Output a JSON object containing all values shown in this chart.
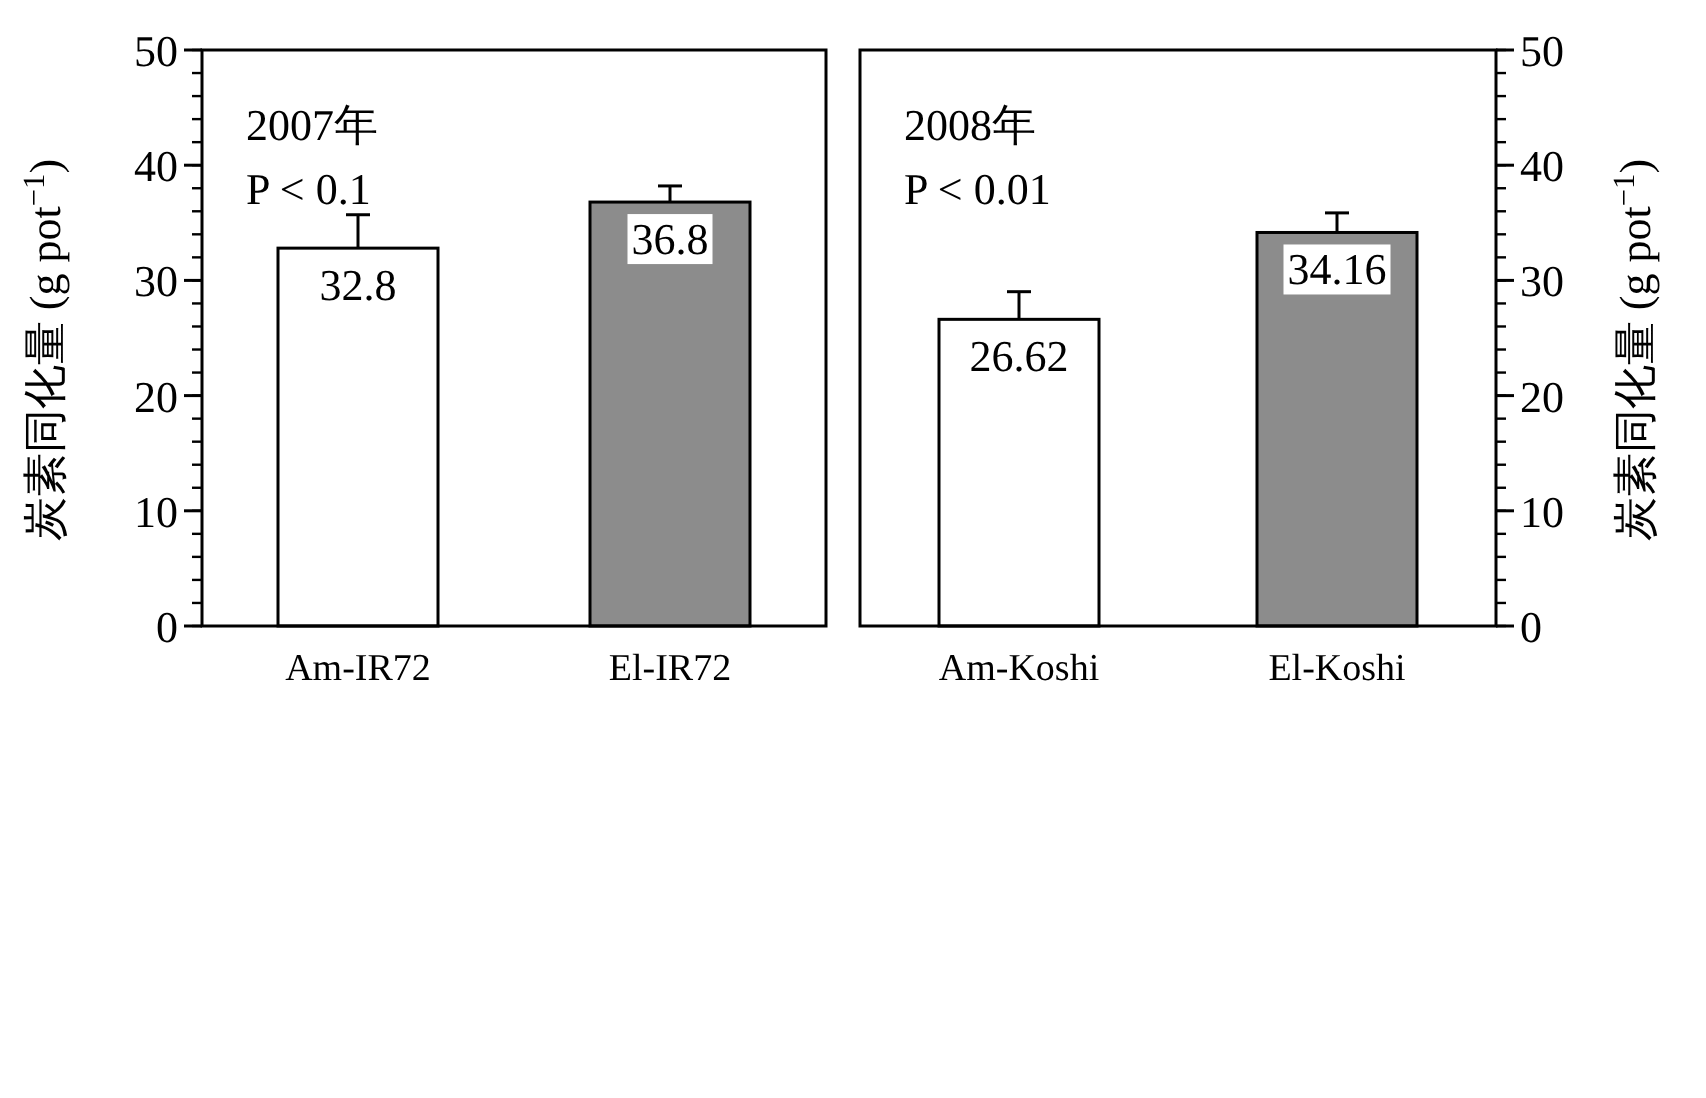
{
  "chart_data": [
    {
      "type": "bar",
      "categories": [
        "Am-IR72",
        "El-IR72"
      ],
      "colors": [
        "#ffffff",
        "#8c8c8c"
      ],
      "series": [
        {
          "values": [
            32.8,
            36.8
          ],
          "errors": [
            2.9,
            1.4
          ]
        }
      ],
      "ylim": [
        0,
        50
      ],
      "yticks": [
        0,
        10,
        20,
        30,
        40,
        50
      ],
      "ylabel": "炭素同化量 (g pot$^{−1}$)",
      "data_labels": true,
      "annotations": [
        "2007年",
        "P < 0.1"
      ]
    },
    {
      "type": "bar",
      "categories": [
        "Am-Koshi",
        "El-Koshi"
      ],
      "colors": [
        "#ffffff",
        "#8c8c8c"
      ],
      "series": [
        {
          "values": [
            26.62,
            34.16
          ],
          "errors": [
            2.4,
            1.7
          ],
          "axis": "y2"
        }
      ],
      "y2lim": [
        0,
        50
      ],
      "y2ticks": [
        0,
        10,
        20,
        30,
        40,
        50
      ],
      "y2label": "炭素同化量 (g pot$^{−1}$)",
      "data_labels": true,
      "annotations": [
        "2008年",
        "P < 0.01"
      ]
    }
  ]
}
